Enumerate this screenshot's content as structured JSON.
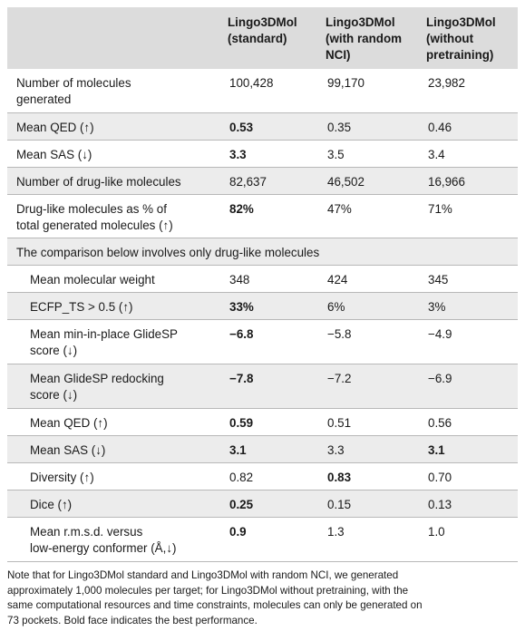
{
  "header": {
    "col1": [
      "Lingo3DMol",
      "(standard)"
    ],
    "col2": [
      "Lingo3DMol",
      "(with random",
      "NCI)"
    ],
    "col3": [
      "Lingo3DMol",
      "(without",
      "pretraining)"
    ]
  },
  "rows": [
    {
      "label": [
        "Number of molecules",
        "generated"
      ],
      "v": [
        "100,428",
        "99,170",
        "23,982"
      ]
    },
    {
      "label": [
        "Mean QED (↑)"
      ],
      "v": [
        "0.53",
        "0.35",
        "0.46"
      ]
    },
    {
      "label": [
        "Mean SAS (↓)"
      ],
      "v": [
        "3.3",
        "3.5",
        "3.4"
      ]
    },
    {
      "label": [
        "Number of drug-like molecules"
      ],
      "v": [
        "82,637",
        "46,502",
        "16,966"
      ]
    },
    {
      "label": [
        "Drug-like molecules as % of",
        "total generated molecules (↑)"
      ],
      "v": [
        "82%",
        "47%",
        "71%"
      ]
    }
  ],
  "section_label": "The comparison below involves only drug-like molecules",
  "rows2": [
    {
      "label": [
        "Mean molecular weight"
      ],
      "v": [
        "348",
        "424",
        "345"
      ]
    },
    {
      "label": [
        "ECFP_TS > 0.5 (↑)"
      ],
      "v": [
        "33%",
        "6%",
        "3%"
      ]
    },
    {
      "label": [
        "Mean min-in-place GlideSP",
        "score (↓)"
      ],
      "v": [
        "−6.8",
        "−5.8",
        "−4.9"
      ]
    },
    {
      "label": [
        "Mean GlideSP redocking",
        "score (↓)"
      ],
      "v": [
        "−7.8",
        "−7.2",
        "−6.9"
      ]
    },
    {
      "label": [
        "Mean QED (↑)"
      ],
      "v": [
        "0.59",
        "0.51",
        "0.56"
      ]
    },
    {
      "label": [
        "Mean SAS (↓)"
      ],
      "v": [
        "3.1",
        "3.3",
        "3.1"
      ]
    },
    {
      "label": [
        "Diversity (↑)"
      ],
      "v": [
        "0.82",
        "0.83",
        "0.70"
      ]
    },
    {
      "label": [
        "Dice (↑)"
      ],
      "v": [
        "0.25",
        "0.15",
        "0.13"
      ]
    },
    {
      "label": [
        "Mean r.m.s.d. versus",
        "low-energy conformer (Å,↓)"
      ],
      "v": [
        "0.9",
        "1.3",
        "1.0"
      ]
    }
  ],
  "note": [
    "Note that for Lingo3DMol standard and Lingo3DMol with random NCI, we generated",
    "approximately 1,000 molecules per target; for Lingo3DMol without pretraining, with the",
    "same computational resources and time constraints, molecules can only be generated on",
    "73 pockets. Bold face indicates the best performance."
  ]
}
